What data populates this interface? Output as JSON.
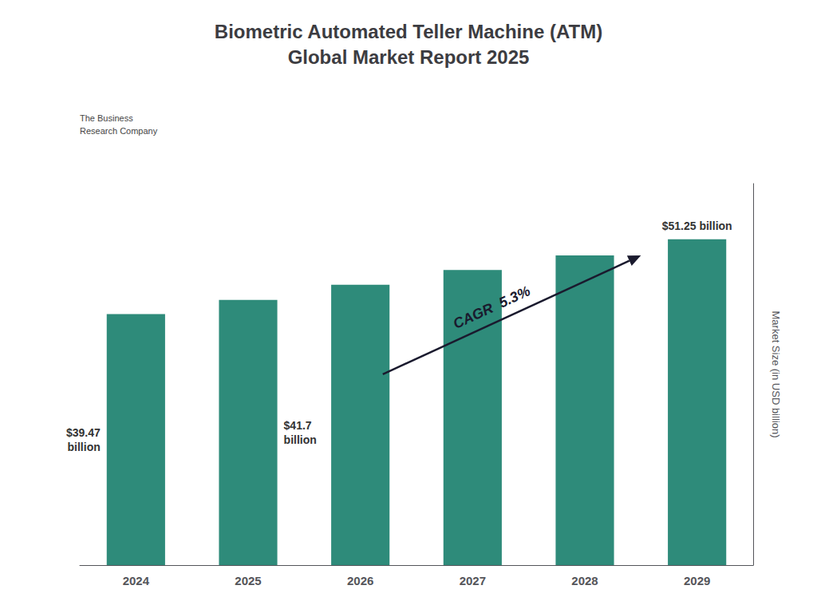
{
  "chart_data": {
    "type": "bar",
    "title": "Biometric Automated Teller Machine (ATM)\nGlobal Market Report 2025",
    "categories": [
      "2024",
      "2025",
      "2026",
      "2027",
      "2028",
      "2029"
    ],
    "values": [
      39.47,
      41.7,
      44.1,
      46.4,
      48.7,
      51.25
    ],
    "value_labels": [
      "$39.47\nbillion",
      "$41.7\nbillion",
      null,
      null,
      null,
      "$51.25 billion"
    ],
    "color": "#2e8b7a",
    "ylabel": "Market Size (in USD billion)",
    "ylim": [
      0,
      60
    ],
    "grid": false,
    "tick_labels": "x",
    "annotations": [
      "CAGR  5.3%",
      "The Business\nResearch Company"
    ]
  }
}
